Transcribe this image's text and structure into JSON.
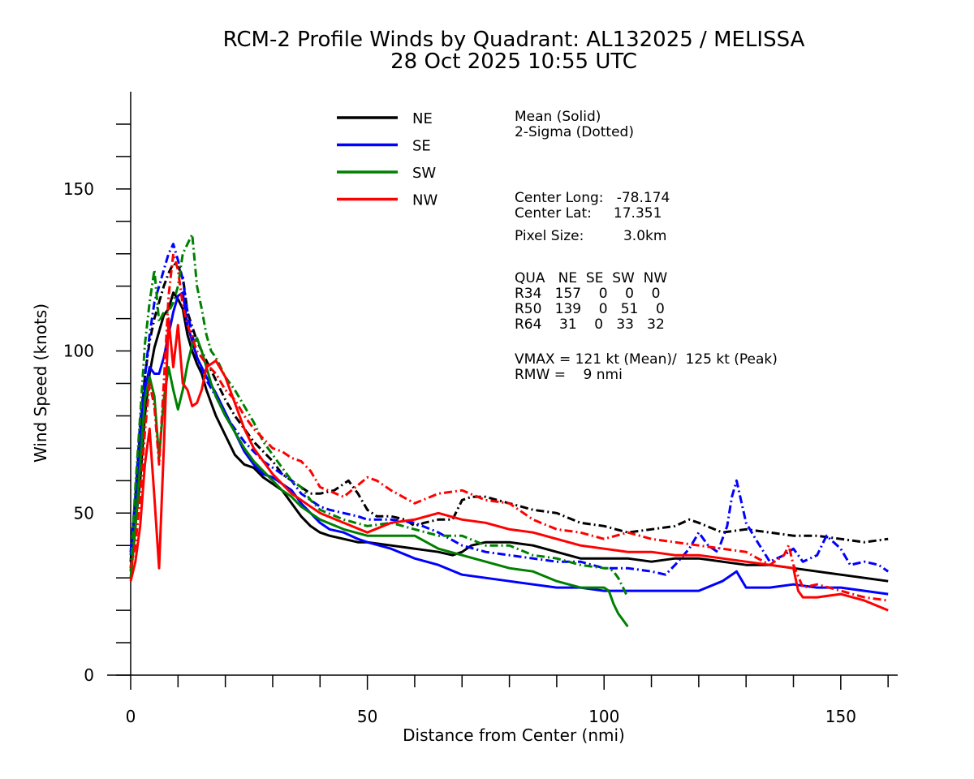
{
  "chart_data": {
    "type": "line",
    "title": "RCM-2 Profile Winds by Quadrant: AL132025 / MELISSA",
    "subtitle": "28 Oct 2025 10:55 UTC",
    "xlabel": "Distance from Center (nmi)",
    "ylabel": "Wind Speed (knots)",
    "xlim": [
      0,
      161
    ],
    "ylim": [
      0,
      180
    ],
    "xticks": [
      "0",
      "50",
      "100",
      "150"
    ],
    "yticks": [
      "0",
      "50",
      "100",
      "150"
    ],
    "legend_position": "top-center",
    "series": [
      {
        "name": "NE",
        "color": "#000000",
        "mean": {
          "x": [
            0,
            2,
            3,
            4,
            5,
            6,
            7,
            8,
            9,
            10,
            11,
            12,
            13,
            14,
            15,
            16,
            17,
            18,
            20,
            22,
            24,
            26,
            28,
            30,
            32,
            34,
            36,
            38,
            40,
            42,
            45,
            48,
            50,
            55,
            60,
            65,
            68,
            70,
            72,
            75,
            80,
            85,
            90,
            95,
            100,
            105,
            110,
            115,
            120,
            125,
            130,
            135,
            140,
            145,
            150,
            155,
            160
          ],
          "y": [
            33,
            60,
            80,
            93,
            101,
            106,
            111,
            113,
            118,
            116,
            113,
            105,
            100,
            96,
            93,
            88,
            84,
            80,
            74,
            68,
            65,
            64,
            61,
            59,
            57,
            53,
            49,
            46,
            44,
            43,
            42,
            41,
            41,
            40,
            39,
            38,
            37,
            38,
            40,
            41,
            41,
            40,
            38,
            36,
            36,
            36,
            35,
            36,
            36,
            35,
            34,
            34,
            33,
            32,
            31,
            30,
            29
          ]
        },
        "sigma": {
          "x": [
            0,
            2,
            3,
            4,
            5,
            6,
            7,
            8,
            9,
            10,
            11,
            12,
            14,
            16,
            18,
            20,
            22,
            24,
            26,
            28,
            30,
            32,
            34,
            36,
            38,
            40,
            43,
            46,
            48,
            50,
            52,
            55,
            58,
            60,
            62,
            65,
            68,
            70,
            72,
            75,
            80,
            85,
            90,
            95,
            100,
            105,
            110,
            115,
            118,
            120,
            125,
            130,
            135,
            140,
            145,
            150,
            155,
            160
          ],
          "y": [
            35,
            75,
            92,
            103,
            110,
            115,
            120,
            124,
            127,
            126,
            123,
            112,
            103,
            97,
            91,
            85,
            80,
            76,
            72,
            69,
            66,
            62,
            60,
            58,
            56,
            56,
            57,
            60,
            56,
            51,
            49,
            49,
            48,
            46,
            47,
            48,
            48,
            54,
            55,
            55,
            53,
            51,
            50,
            47,
            46,
            44,
            45,
            46,
            48,
            47,
            44,
            45,
            44,
            43,
            43,
            42,
            41,
            42
          ]
        }
      },
      {
        "name": "SE",
        "color": "#0000ff",
        "mean": {
          "x": [
            0,
            1,
            2,
            3,
            4,
            5,
            6,
            7,
            8,
            9,
            10,
            11,
            12,
            14,
            16,
            18,
            20,
            22,
            24,
            26,
            28,
            30,
            32,
            34,
            36,
            38,
            40,
            42,
            45,
            48,
            50,
            55,
            60,
            65,
            70,
            75,
            80,
            85,
            90,
            95,
            100,
            105,
            110,
            115,
            120,
            125,
            127,
            128,
            130,
            135,
            140,
            145,
            150,
            155,
            160
          ],
          "y": [
            37,
            50,
            72,
            88,
            95,
            93,
            93,
            98,
            105,
            112,
            117,
            118,
            108,
            98,
            92,
            87,
            81,
            75,
            69,
            65,
            62,
            61,
            59,
            57,
            53,
            50,
            47,
            45,
            44,
            42,
            41,
            39,
            36,
            34,
            31,
            30,
            29,
            28,
            27,
            27,
            26,
            26,
            26,
            26,
            26,
            29,
            31,
            32,
            27,
            27,
            28,
            27,
            27,
            26,
            25
          ]
        },
        "sigma": {
          "x": [
            0,
            1,
            2,
            3,
            4,
            5,
            6,
            7,
            8,
            9,
            10,
            11,
            12,
            14,
            16,
            18,
            20,
            22,
            24,
            26,
            28,
            30,
            32,
            34,
            36,
            38,
            40,
            42,
            45,
            48,
            50,
            55,
            60,
            65,
            70,
            75,
            80,
            85,
            90,
            95,
            100,
            105,
            110,
            113,
            115,
            118,
            120,
            122,
            124,
            125,
            126,
            127,
            128,
            130,
            132,
            135,
            138,
            140,
            142,
            145,
            147,
            150,
            152,
            155,
            158,
            160
          ],
          "y": [
            38,
            55,
            78,
            92,
            105,
            115,
            120,
            125,
            130,
            133,
            128,
            122,
            112,
            98,
            91,
            86,
            80,
            76,
            72,
            69,
            66,
            64,
            62,
            60,
            56,
            54,
            52,
            51,
            50,
            49,
            48,
            48,
            47,
            44,
            40,
            38,
            37,
            36,
            35,
            35,
            33,
            33,
            32,
            31,
            34,
            39,
            44,
            40,
            38,
            42,
            46,
            55,
            60,
            47,
            42,
            35,
            37,
            39,
            35,
            37,
            43,
            39,
            34,
            35,
            34,
            32
          ]
        }
      },
      {
        "name": "SW",
        "color": "#008000",
        "mean": {
          "x": [
            0,
            1,
            2,
            3,
            4,
            5,
            6,
            7,
            8,
            9,
            10,
            11,
            12,
            13,
            14,
            15,
            16,
            17,
            18,
            20,
            22,
            24,
            26,
            28,
            30,
            32,
            34,
            36,
            38,
            40,
            45,
            50,
            55,
            60,
            65,
            70,
            75,
            80,
            85,
            90,
            95,
            100,
            101,
            102,
            103,
            104,
            105
          ],
          "y": [
            30,
            45,
            65,
            85,
            92,
            86,
            67,
            85,
            95,
            88,
            82,
            88,
            96,
            102,
            104,
            100,
            95,
            90,
            86,
            80,
            75,
            70,
            66,
            63,
            60,
            57,
            55,
            52,
            50,
            48,
            45,
            43,
            43,
            43,
            39,
            37,
            35,
            33,
            32,
            29,
            27,
            27,
            26,
            22,
            19,
            17,
            15
          ]
        },
        "sigma": {
          "x": [
            0,
            1,
            2,
            3,
            4,
            5,
            6,
            7,
            8,
            9,
            10,
            11,
            12,
            13,
            14,
            15,
            16,
            17,
            18,
            20,
            22,
            24,
            26,
            28,
            30,
            32,
            34,
            36,
            38,
            40,
            45,
            50,
            55,
            60,
            65,
            70,
            75,
            80,
            85,
            90,
            95,
            100,
            101,
            102,
            103,
            104,
            105
          ],
          "y": [
            32,
            58,
            80,
            102,
            115,
            125,
            109,
            112,
            112,
            115,
            120,
            130,
            133,
            136,
            120,
            113,
            105,
            100,
            98,
            92,
            88,
            83,
            78,
            72,
            68,
            64,
            60,
            58,
            54,
            51,
            48,
            46,
            47,
            45,
            43,
            43,
            40,
            40,
            37,
            36,
            34,
            33,
            33,
            32,
            30,
            27,
            24
          ]
        }
      },
      {
        "name": "NW",
        "color": "#ff0000",
        "mean": {
          "x": [
            0,
            1,
            2,
            3,
            4,
            5,
            6,
            7,
            8,
            9,
            10,
            11,
            12,
            13,
            14,
            15,
            16,
            18,
            20,
            22,
            24,
            26,
            28,
            30,
            32,
            34,
            36,
            38,
            40,
            45,
            50,
            55,
            60,
            65,
            70,
            75,
            80,
            85,
            90,
            95,
            100,
            105,
            110,
            115,
            120,
            125,
            130,
            135,
            140,
            141,
            142,
            145,
            150,
            155,
            160
          ],
          "y": [
            29,
            35,
            46,
            65,
            76,
            55,
            33,
            70,
            110,
            95,
            108,
            90,
            88,
            83,
            84,
            88,
            95,
            97,
            92,
            84,
            76,
            70,
            66,
            62,
            59,
            56,
            54,
            52,
            50,
            47,
            44,
            47,
            48,
            50,
            48,
            47,
            45,
            44,
            42,
            40,
            39,
            38,
            38,
            37,
            37,
            36,
            35,
            34,
            33,
            26,
            24,
            24,
            25,
            23,
            20
          ]
        },
        "sigma": {
          "x": [
            0,
            1,
            2,
            3,
            4,
            5,
            6,
            7,
            8,
            9,
            10,
            11,
            12,
            14,
            16,
            18,
            20,
            22,
            24,
            26,
            28,
            30,
            32,
            34,
            36,
            38,
            40,
            45,
            50,
            52,
            55,
            60,
            65,
            70,
            75,
            80,
            85,
            90,
            95,
            100,
            105,
            110,
            115,
            120,
            125,
            130,
            135,
            138,
            139,
            140,
            142,
            145,
            150,
            155,
            160
          ],
          "y": [
            33,
            40,
            55,
            75,
            90,
            83,
            65,
            90,
            117,
            130,
            125,
            114,
            108,
            100,
            96,
            93,
            88,
            85,
            80,
            76,
            73,
            70,
            69,
            67,
            66,
            63,
            58,
            55,
            61,
            60,
            57,
            53,
            56,
            57,
            54,
            53,
            48,
            45,
            44,
            42,
            44,
            42,
            41,
            40,
            39,
            38,
            34,
            37,
            40,
            34,
            27,
            28,
            26,
            24,
            23
          ]
        }
      }
    ]
  },
  "info": {
    "mean_label": "Mean (Solid)",
    "sigma_label": "2-Sigma (Dotted)",
    "center_long": "Center Long:   -78.174",
    "center_lat": "Center Lat:     17.351",
    "pixel_size": "Pixel Size:         3.0km",
    "table": [
      "QUA   NE  SE  SW  NW",
      "R34   157    0    0    0",
      "R50   139    0   51    0",
      "R64    31    0   33   32"
    ],
    "vmax": "VMAX = 121 kt (Mean)/  125 kt (Peak)",
    "rmw": "RMW =    9 nmi"
  }
}
